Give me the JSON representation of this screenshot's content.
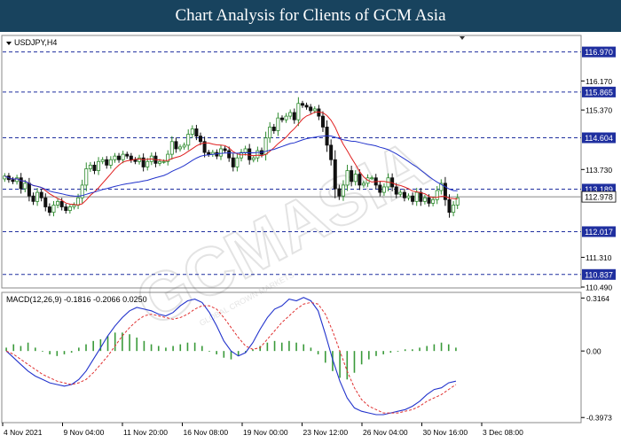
{
  "header": {
    "title": "Chart Analysis for Clients of GCM Asia"
  },
  "watermark": {
    "text": "GCMASIA",
    "subtext": "GLOBAL CROWN MARKETS"
  },
  "colors": {
    "candle_up": "#2e8b2e",
    "candle_down": "#111111",
    "ma_fast": "#e02020",
    "ma_slow": "#2233cc",
    "macd_line": "#2233cc",
    "signal_line": "#e03030",
    "histogram": "#3a9a3a",
    "level_line": "#1f2f9f",
    "level_tag_bg": "#1f2f9f",
    "current_tag_bg": "#ffffff"
  },
  "chart_data": [
    {
      "type": "candlestick",
      "symbol_label": "USDJPY,H4",
      "ylim": [
        110.49,
        117.4
      ],
      "ytick_labels": [
        "116.170",
        "115.370",
        "113.730",
        "111.310",
        "110.490"
      ],
      "resistance_support_levels": [
        "116.970",
        "115.865",
        "114.604",
        "113.189",
        "112.017",
        "110.837"
      ],
      "current_price": "112.978",
      "closes": [
        113.55,
        113.45,
        113.4,
        113.5,
        113.2,
        113.35,
        113.0,
        112.85,
        113.1,
        112.95,
        112.7,
        112.55,
        112.75,
        112.85,
        112.7,
        112.6,
        112.7,
        112.75,
        112.95,
        113.3,
        113.75,
        113.85,
        113.7,
        113.95,
        114.0,
        113.85,
        114.0,
        114.1,
        114.0,
        114.15,
        114.1,
        114.0,
        113.95,
        114.05,
        113.8,
        113.95,
        114.1,
        113.9,
        113.95,
        113.95,
        114.15,
        114.5,
        114.3,
        114.35,
        114.4,
        114.7,
        114.85,
        114.65,
        114.5,
        114.2,
        114.15,
        114.2,
        114.1,
        114.3,
        114.25,
        114.05,
        113.8,
        114.05,
        114.2,
        114.3,
        114.0,
        114.05,
        114.25,
        114.15,
        114.6,
        114.9,
        114.8,
        115.15,
        115.1,
        115.2,
        115.3,
        115.1,
        115.55,
        115.5,
        115.45,
        115.35,
        115.4,
        115.2,
        114.9,
        114.4,
        114.0,
        113.2,
        113.0,
        113.3,
        113.7,
        113.4,
        113.6,
        113.3,
        113.35,
        113.5,
        113.5,
        113.3,
        113.1,
        113.25,
        113.5,
        113.25,
        113.05,
        113.1,
        112.95,
        113.0,
        112.85,
        113.1,
        112.85,
        112.95,
        112.8,
        112.9,
        113.15,
        113.35,
        112.9,
        112.55,
        112.75,
        112.95
      ]
    },
    {
      "type": "line",
      "title": "MACD(12,26,9) -0.1816 -0.2066 0.0250",
      "ylim": [
        -0.4225,
        0.3395
      ],
      "ytick_labels": [
        "0.3164",
        "0.00",
        "-0.3973"
      ],
      "macd_points": [
        0.0,
        -0.04,
        -0.08,
        -0.12,
        -0.15,
        -0.17,
        -0.19,
        -0.2,
        -0.21,
        -0.2,
        -0.17,
        -0.12,
        -0.05,
        0.02,
        0.09,
        0.15,
        0.2,
        0.24,
        0.26,
        0.25,
        0.24,
        0.22,
        0.21,
        0.23,
        0.27,
        0.3,
        0.31,
        0.29,
        0.23,
        0.15,
        0.06,
        0.0,
        -0.03,
        -0.01,
        0.05,
        0.13,
        0.2,
        0.25,
        0.27,
        0.31,
        0.3,
        0.32,
        0.3,
        0.24,
        0.1,
        -0.05,
        -0.18,
        -0.28,
        -0.34,
        -0.36,
        -0.37,
        -0.38,
        -0.38,
        -0.37,
        -0.36,
        -0.35,
        -0.33,
        -0.3,
        -0.26,
        -0.23,
        -0.22,
        -0.19,
        -0.18
      ],
      "signal_points": [
        0.0,
        -0.02,
        -0.05,
        -0.08,
        -0.11,
        -0.14,
        -0.16,
        -0.18,
        -0.19,
        -0.2,
        -0.19,
        -0.17,
        -0.13,
        -0.08,
        -0.03,
        0.03,
        0.09,
        0.14,
        0.18,
        0.21,
        0.22,
        0.21,
        0.2,
        0.19,
        0.2,
        0.22,
        0.25,
        0.27,
        0.27,
        0.25,
        0.2,
        0.14,
        0.08,
        0.03,
        0.01,
        0.02,
        0.07,
        0.12,
        0.17,
        0.21,
        0.25,
        0.28,
        0.29,
        0.28,
        0.22,
        0.12,
        0.0,
        -0.12,
        -0.22,
        -0.29,
        -0.33,
        -0.35,
        -0.37,
        -0.37,
        -0.37,
        -0.36,
        -0.35,
        -0.33,
        -0.3,
        -0.28,
        -0.26,
        -0.23,
        -0.2
      ],
      "histogram": [
        0.02,
        0.04,
        0.03,
        0.05,
        0.02,
        0.0,
        -0.02,
        -0.03,
        -0.02,
        -0.01,
        0.02,
        0.04,
        0.06,
        0.07,
        0.09,
        0.11,
        0.11,
        0.1,
        0.08,
        0.06,
        0.04,
        0.03,
        0.02,
        0.03,
        0.04,
        0.05,
        0.05,
        0.03,
        0.0,
        -0.02,
        -0.04,
        -0.05,
        -0.03,
        -0.01,
        0.01,
        0.03,
        0.05,
        0.06,
        0.05,
        0.06,
        0.05,
        0.04,
        0.02,
        -0.02,
        -0.07,
        -0.12,
        -0.16,
        -0.17,
        -0.13,
        -0.08,
        -0.05,
        -0.03,
        -0.02,
        -0.01,
        0.0,
        0.01,
        0.01,
        0.02,
        0.03,
        0.04,
        0.05,
        0.04,
        0.02
      ],
      "x_tick_labels": [
        "4 Nov 2021",
        "9 Nov 04:00",
        "11 Nov 20:00",
        "16 Nov 08:00",
        "19 Nov 00:00",
        "23 Nov 12:00",
        "26 Nov 04:00",
        "30 Nov 16:00",
        "3 Dec 08:00"
      ]
    }
  ]
}
